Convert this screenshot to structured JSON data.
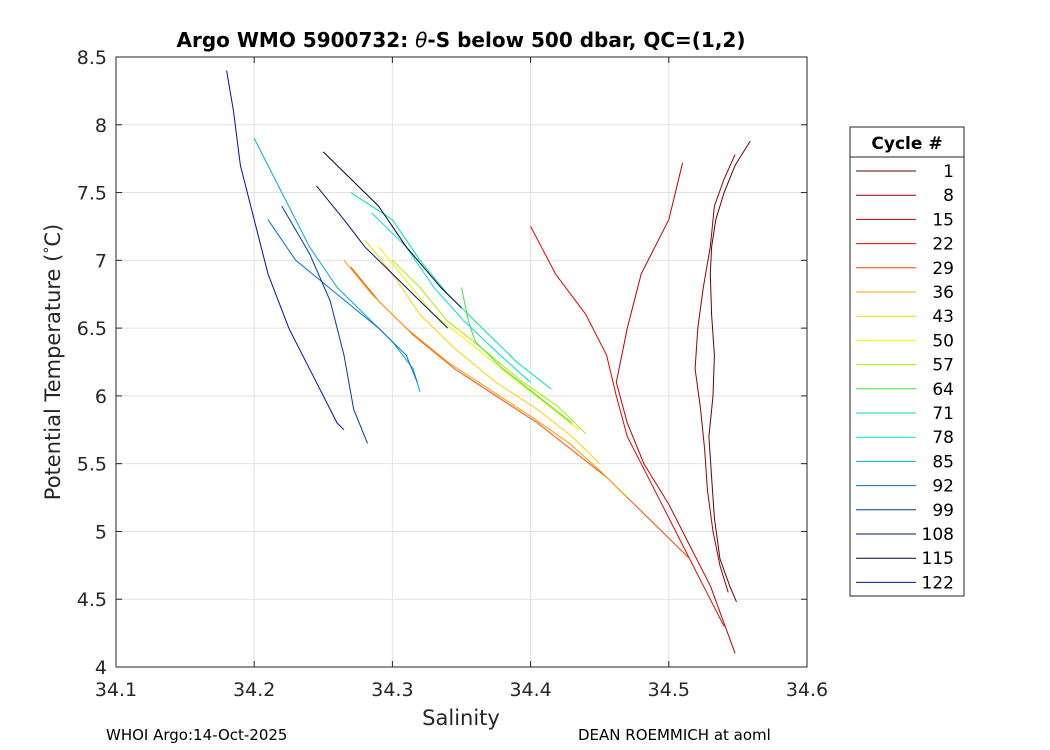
{
  "chart_data": {
    "type": "line",
    "title": "Argo WMO 5900732: θ-S below 500 dbar,  QC=(1,2)",
    "title_prefix": "Argo WMO 5900732: ",
    "title_theta": "θ",
    "title_suffix": "-S below 500 dbar,  QC=(1,2)",
    "xlabel": "Salinity",
    "ylabel_main": "Potential Temperature (",
    "ylabel_deg": "°",
    "ylabel_unit": "C)",
    "xlim": [
      34.1,
      34.6
    ],
    "ylim": [
      4,
      8.5
    ],
    "xticks": [
      34.1,
      34.2,
      34.3,
      34.4,
      34.5,
      34.6
    ],
    "xtick_labels": [
      "34.1",
      "34.2",
      "34.3",
      "34.4",
      "34.5",
      "34.6"
    ],
    "yticks": [
      4,
      4.5,
      5,
      5.5,
      6,
      6.5,
      7,
      7.5,
      8,
      8.5
    ],
    "ytick_labels": [
      "4",
      "4.5",
      "5",
      "5.5",
      "6",
      "6.5",
      "7",
      "7.5",
      "8",
      "8.5"
    ],
    "grid": true,
    "legend_title": "Cycle #",
    "legend_position": "outside-right",
    "legend": [
      {
        "label": "1",
        "color": "#6b0000"
      },
      {
        "label": "8",
        "color": "#960000"
      },
      {
        "label": "15",
        "color": "#c00000"
      },
      {
        "label": "22",
        "color": "#e80000"
      },
      {
        "label": "29",
        "color": "#ff4a00"
      },
      {
        "label": "36",
        "color": "#ff9c00"
      },
      {
        "label": "43",
        "color": "#ffd200"
      },
      {
        "label": "50",
        "color": "#f2f200"
      },
      {
        "label": "57",
        "color": "#a8ee00"
      },
      {
        "label": "64",
        "color": "#3ae63a"
      },
      {
        "label": "71",
        "color": "#00e8a0"
      },
      {
        "label": "78",
        "color": "#00dde0"
      },
      {
        "label": "85",
        "color": "#00a8e0"
      },
      {
        "label": "92",
        "color": "#0070c8"
      },
      {
        "label": "99",
        "color": "#003c9a"
      },
      {
        "label": "108",
        "color": "#00166a"
      },
      {
        "label": "115",
        "color": "#000040"
      },
      {
        "label": "122",
        "color": "#0010a8"
      }
    ],
    "series": [
      {
        "name": "1",
        "color": "#6b0000",
        "points": [
          [
            34.559,
            7.88
          ],
          [
            34.548,
            7.7
          ],
          [
            34.54,
            7.5
          ],
          [
            34.534,
            7.3
          ],
          [
            34.531,
            7.1
          ],
          [
            34.53,
            6.9
          ],
          [
            34.531,
            6.6
          ],
          [
            34.533,
            6.3
          ],
          [
            34.532,
            6.0
          ],
          [
            34.529,
            5.7
          ],
          [
            34.531,
            5.4
          ],
          [
            34.533,
            5.1
          ],
          [
            34.537,
            4.8
          ],
          [
            34.544,
            4.6
          ],
          [
            34.549,
            4.48
          ]
        ]
      },
      {
        "name": "8",
        "color": "#960000",
        "points": [
          [
            34.548,
            7.78
          ],
          [
            34.54,
            7.6
          ],
          [
            34.533,
            7.4
          ],
          [
            34.53,
            7.1
          ],
          [
            34.525,
            6.8
          ],
          [
            34.521,
            6.5
          ],
          [
            34.519,
            6.2
          ],
          [
            34.523,
            5.9
          ],
          [
            34.526,
            5.6
          ],
          [
            34.528,
            5.3
          ],
          [
            34.532,
            5.0
          ],
          [
            34.537,
            4.75
          ],
          [
            34.543,
            4.55
          ]
        ]
      },
      {
        "name": "15",
        "color": "#c00000",
        "points": [
          [
            34.51,
            7.72
          ],
          [
            34.5,
            7.3
          ],
          [
            34.48,
            6.9
          ],
          [
            34.47,
            6.5
          ],
          [
            34.462,
            6.1
          ],
          [
            34.47,
            5.8
          ],
          [
            34.482,
            5.5
          ],
          [
            34.5,
            5.2
          ],
          [
            34.515,
            4.9
          ],
          [
            34.53,
            4.6
          ],
          [
            34.548,
            4.1
          ]
        ]
      },
      {
        "name": "22",
        "color": "#e80000",
        "points": [
          [
            34.4,
            7.25
          ],
          [
            34.418,
            6.9
          ],
          [
            34.44,
            6.6
          ],
          [
            34.455,
            6.3
          ],
          [
            34.462,
            6.0
          ],
          [
            34.47,
            5.7
          ],
          [
            34.48,
            5.5
          ],
          [
            34.495,
            5.2
          ],
          [
            34.51,
            4.9
          ],
          [
            34.525,
            4.6
          ],
          [
            34.54,
            4.3
          ]
        ]
      },
      {
        "name": "29",
        "color": "#ff4a00",
        "points": [
          [
            34.27,
            6.95
          ],
          [
            34.29,
            6.7
          ],
          [
            34.315,
            6.45
          ],
          [
            34.345,
            6.2
          ],
          [
            34.375,
            6.0
          ],
          [
            34.405,
            5.8
          ],
          [
            34.43,
            5.6
          ],
          [
            34.455,
            5.4
          ],
          [
            34.475,
            5.2
          ],
          [
            34.495,
            5.0
          ],
          [
            34.515,
            4.8
          ]
        ]
      },
      {
        "name": "36",
        "color": "#ff9c00",
        "points": [
          [
            34.265,
            7.0
          ],
          [
            34.285,
            6.75
          ],
          [
            34.31,
            6.5
          ],
          [
            34.34,
            6.25
          ],
          [
            34.37,
            6.05
          ],
          [
            34.4,
            5.85
          ],
          [
            34.428,
            5.65
          ],
          [
            34.45,
            5.45
          ],
          [
            34.47,
            5.25
          ]
        ]
      },
      {
        "name": "43",
        "color": "#ffd200",
        "points": [
          [
            34.28,
            7.15
          ],
          [
            34.3,
            6.9
          ],
          [
            34.32,
            6.6
          ],
          [
            34.345,
            6.35
          ],
          [
            34.375,
            6.1
          ],
          [
            34.405,
            5.9
          ],
          [
            34.43,
            5.7
          ],
          [
            34.45,
            5.5
          ]
        ]
      },
      {
        "name": "50",
        "color": "#f2f200",
        "points": [
          [
            34.29,
            7.1
          ],
          [
            34.31,
            6.85
          ],
          [
            34.33,
            6.6
          ],
          [
            34.355,
            6.4
          ],
          [
            34.385,
            6.15
          ],
          [
            34.41,
            5.95
          ],
          [
            34.435,
            5.75
          ]
        ]
      },
      {
        "name": "57",
        "color": "#a8ee00",
        "points": [
          [
            34.3,
            7.0
          ],
          [
            34.32,
            6.8
          ],
          [
            34.34,
            6.55
          ],
          [
            34.365,
            6.35
          ],
          [
            34.392,
            6.12
          ],
          [
            34.42,
            5.92
          ],
          [
            34.44,
            5.72
          ]
        ]
      },
      {
        "name": "64",
        "color": "#3ae63a",
        "points": [
          [
            34.35,
            6.8
          ],
          [
            34.355,
            6.55
          ],
          [
            34.36,
            6.4
          ],
          [
            34.38,
            6.2
          ],
          [
            34.405,
            6.0
          ],
          [
            34.43,
            5.8
          ]
        ]
      },
      {
        "name": "71",
        "color": "#00e8a0",
        "points": [
          [
            34.27,
            7.5
          ],
          [
            34.3,
            7.3
          ],
          [
            34.32,
            7.0
          ],
          [
            34.34,
            6.75
          ],
          [
            34.365,
            6.5
          ],
          [
            34.39,
            6.25
          ],
          [
            34.415,
            6.05
          ]
        ]
      },
      {
        "name": "78",
        "color": "#00dde0",
        "points": [
          [
            34.285,
            7.35
          ],
          [
            34.31,
            7.1
          ],
          [
            34.33,
            6.8
          ],
          [
            34.352,
            6.55
          ],
          [
            34.378,
            6.3
          ],
          [
            34.4,
            6.1
          ]
        ]
      },
      {
        "name": "85",
        "color": "#00a8e0",
        "points": [
          [
            34.2,
            7.9
          ],
          [
            34.22,
            7.5
          ],
          [
            34.24,
            7.1
          ],
          [
            34.26,
            6.8
          ],
          [
            34.28,
            6.6
          ],
          [
            34.3,
            6.4
          ],
          [
            34.315,
            6.2
          ],
          [
            34.32,
            6.03
          ]
        ]
      },
      {
        "name": "92",
        "color": "#0070c8",
        "points": [
          [
            34.21,
            7.3
          ],
          [
            34.23,
            7.0
          ],
          [
            34.26,
            6.75
          ],
          [
            34.29,
            6.5
          ],
          [
            34.31,
            6.3
          ],
          [
            34.318,
            6.1
          ]
        ]
      },
      {
        "name": "99",
        "color": "#003c9a",
        "points": [
          [
            34.22,
            7.4
          ],
          [
            34.24,
            7.05
          ],
          [
            34.255,
            6.7
          ],
          [
            34.265,
            6.3
          ],
          [
            34.272,
            5.9
          ],
          [
            34.282,
            5.65
          ]
        ]
      },
      {
        "name": "108",
        "color": "#00166a",
        "points": [
          [
            34.245,
            7.55
          ],
          [
            34.265,
            7.3
          ],
          [
            34.28,
            7.1
          ],
          [
            34.3,
            6.9
          ],
          [
            34.32,
            6.7
          ],
          [
            34.34,
            6.5
          ]
        ]
      },
      {
        "name": "115",
        "color": "#000040",
        "points": [
          [
            34.25,
            7.8
          ],
          [
            34.27,
            7.6
          ],
          [
            34.29,
            7.4
          ],
          [
            34.31,
            7.1
          ],
          [
            34.335,
            6.8
          ],
          [
            34.35,
            6.65
          ]
        ]
      },
      {
        "name": "122",
        "color": "#0010a8",
        "points": [
          [
            34.18,
            8.4
          ],
          [
            34.185,
            8.1
          ],
          [
            34.19,
            7.7
          ],
          [
            34.2,
            7.3
          ],
          [
            34.21,
            6.9
          ],
          [
            34.225,
            6.5
          ],
          [
            34.24,
            6.2
          ],
          [
            34.25,
            6.0
          ],
          [
            34.26,
            5.8
          ],
          [
            34.265,
            5.75
          ]
        ]
      }
    ]
  },
  "footer": {
    "left": "WHOI Argo:14-Oct-2025",
    "right": "DEAN ROEMMICH at aoml"
  }
}
